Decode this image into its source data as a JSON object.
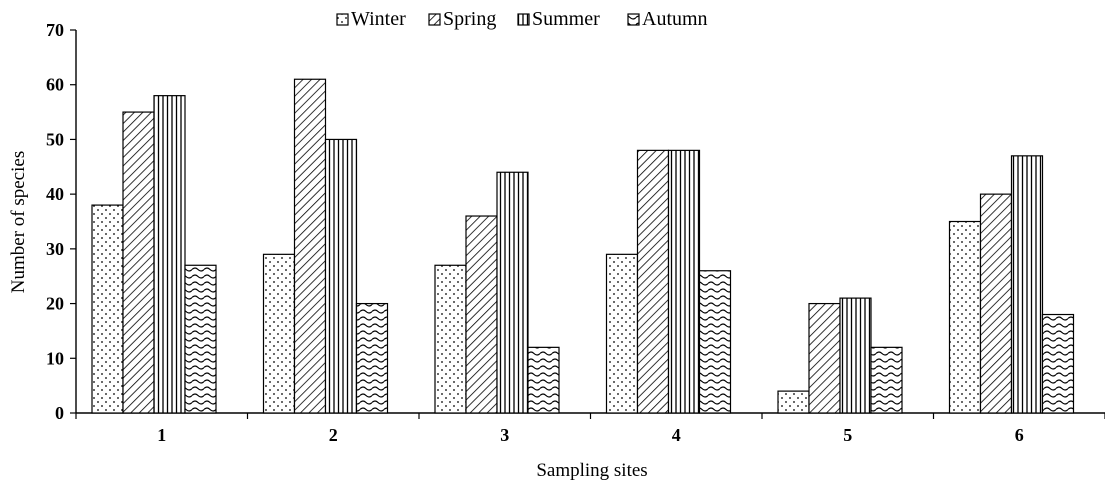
{
  "chart_data": {
    "type": "bar",
    "title": "",
    "xlabel": "Sampling sites",
    "ylabel": "Number  of species",
    "categories": [
      "1",
      "2",
      "3",
      "4",
      "5",
      "6"
    ],
    "ylim": [
      0,
      70
    ],
    "yticks": [
      0,
      10,
      20,
      30,
      40,
      50,
      60,
      70
    ],
    "grid": false,
    "legend_position": "top",
    "series": [
      {
        "name": "Winter",
        "pattern": "dots",
        "values": [
          38,
          29,
          27,
          29,
          4,
          35
        ]
      },
      {
        "name": "Spring",
        "pattern": "diagonal",
        "values": [
          55,
          61,
          36,
          48,
          20,
          40
        ]
      },
      {
        "name": "Summer",
        "pattern": "vertical",
        "values": [
          58,
          50,
          44,
          48,
          21,
          47
        ]
      },
      {
        "name": "Autumn",
        "pattern": "waves",
        "values": [
          27,
          20,
          12,
          26,
          12,
          18
        ]
      }
    ],
    "colors": {
      "stroke": "#000000",
      "fill": "#ffffff"
    }
  }
}
